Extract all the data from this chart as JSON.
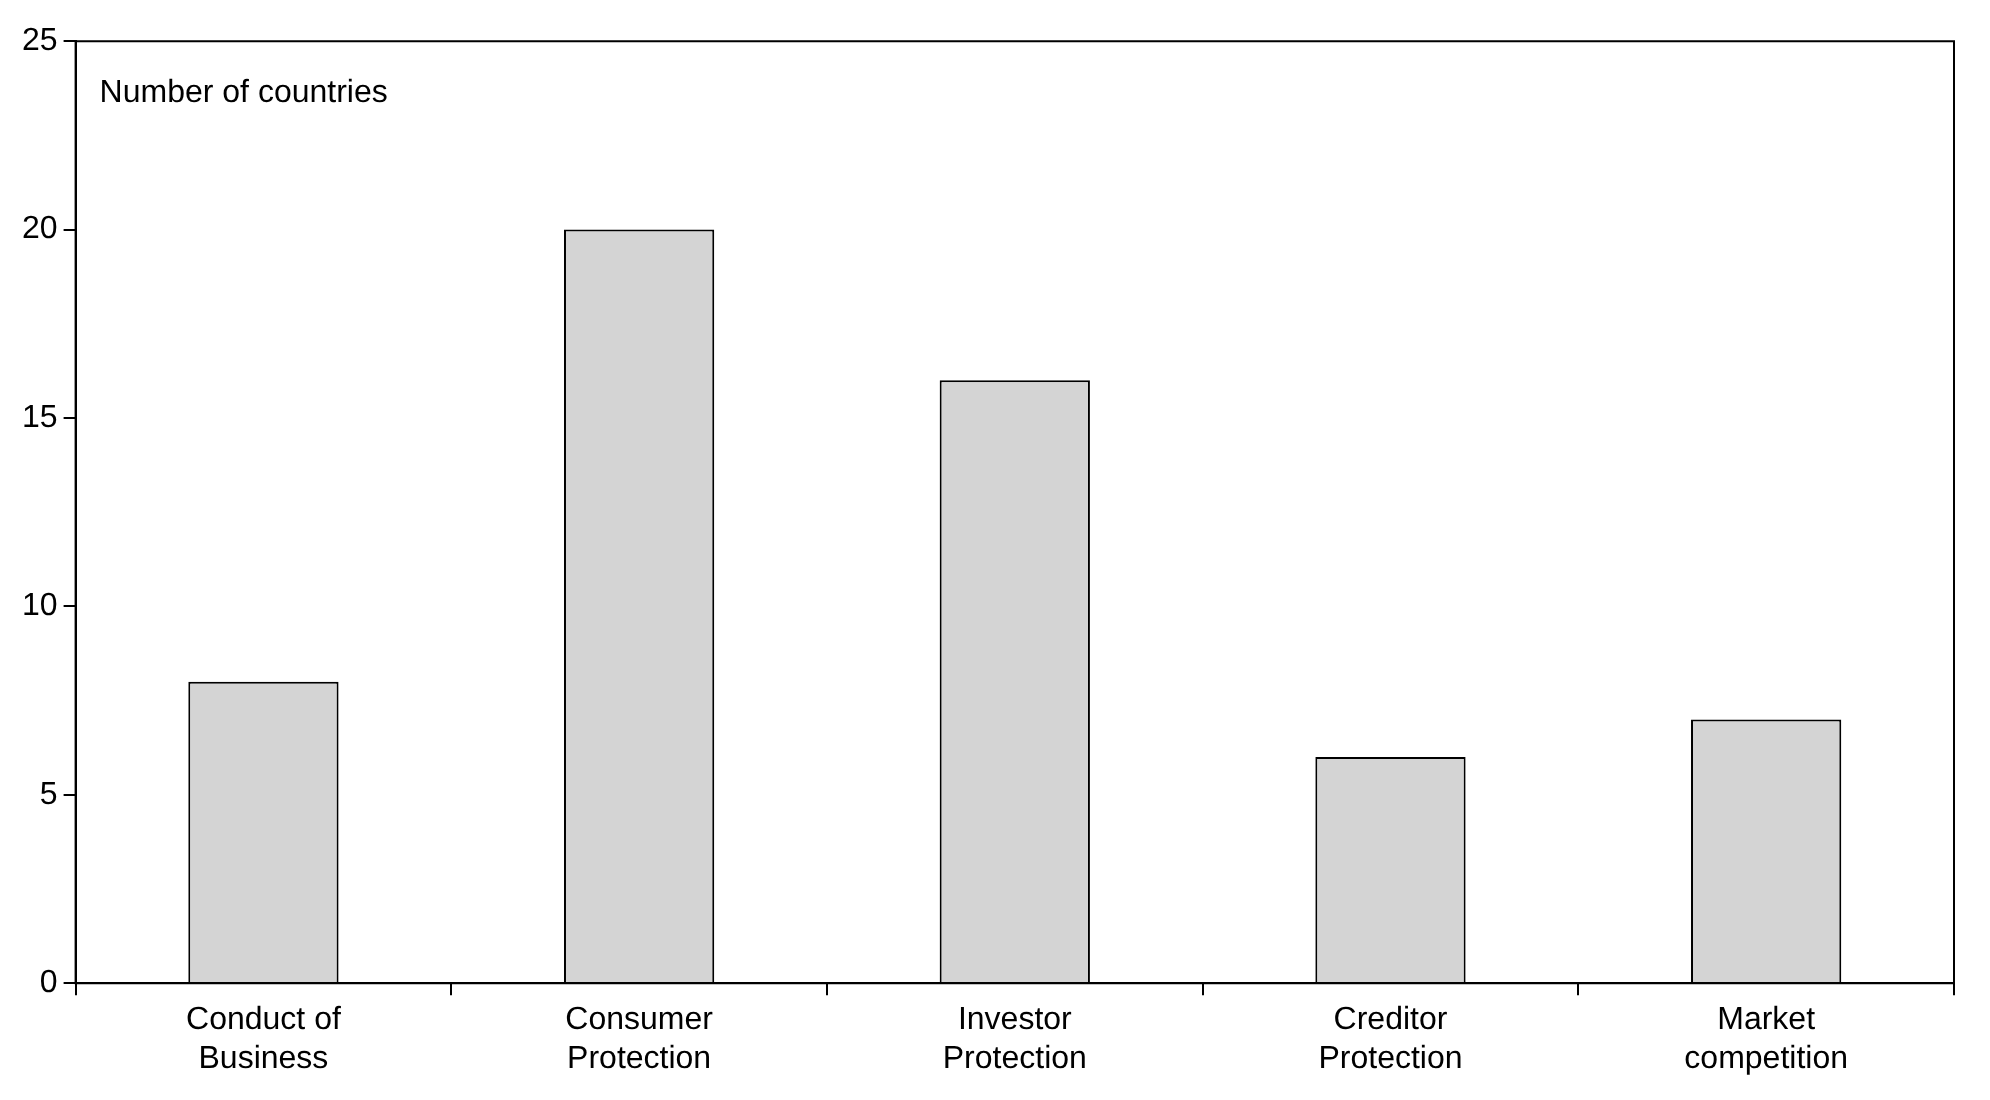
{
  "chart_data": {
    "type": "bar",
    "ylabel": "Number of countries",
    "categories": [
      "Conduct of Business",
      "Consumer Protection",
      "Investor Protection",
      "Creditor Protection",
      "Market competition"
    ],
    "values": [
      8,
      20,
      16,
      6,
      7
    ],
    "color": "#d4d4d4",
    "ylim": [
      0,
      25
    ],
    "yticks": [
      0,
      5,
      10,
      15,
      20,
      25
    ],
    "grid": false,
    "legend": false
  }
}
